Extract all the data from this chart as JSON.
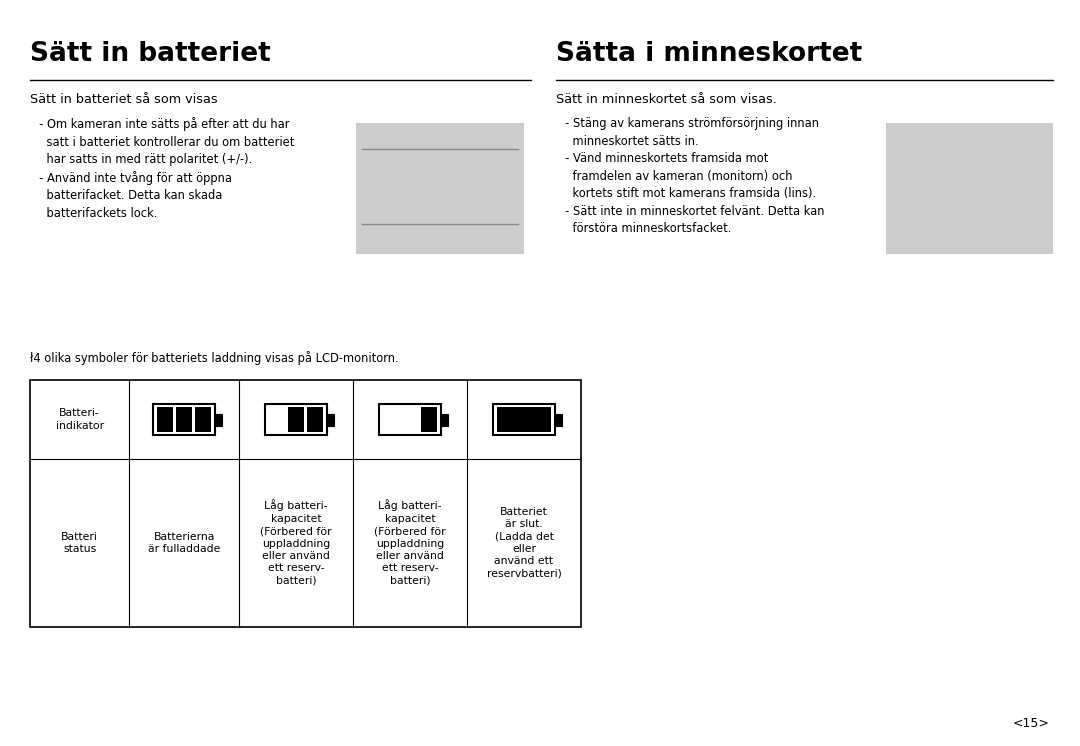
{
  "bg_color": "#ffffff",
  "title_left": "Sätt in batteriet",
  "title_right": "Sätta i minneskortet",
  "section_left_subtitle": "Sätt in batteriet så som visas",
  "section_right_subtitle": "Sätt in minneskortet så som visas.",
  "left_bullet_text": "  - Om kameran inte sätts på efter att du har\n    satt i batteriet kontrollerar du om batteriet\n    har satts in med rätt polaritet (+/-).\n  - Använd inte tvång för att öppna\n    batterifacket. Detta kan skada\n    batterifackets lock.",
  "right_bullet_text": "  - Stäng av kamerans strömförsörjning innan\n    minneskortet sätts in.\n  - Vänd minneskortets framsida mot\n    framdelen av kameran (monitorn) och\n    kortets stift mot kamerans framsida (lins).\n  - Sätt inte in minneskortet felvänt. Detta kan\n    förstöra minneskortsfacket.",
  "table_intro": "ł4 olika symboler för batteriets laddning visas på LCD-monitorn.",
  "page_number": "<15>"
}
